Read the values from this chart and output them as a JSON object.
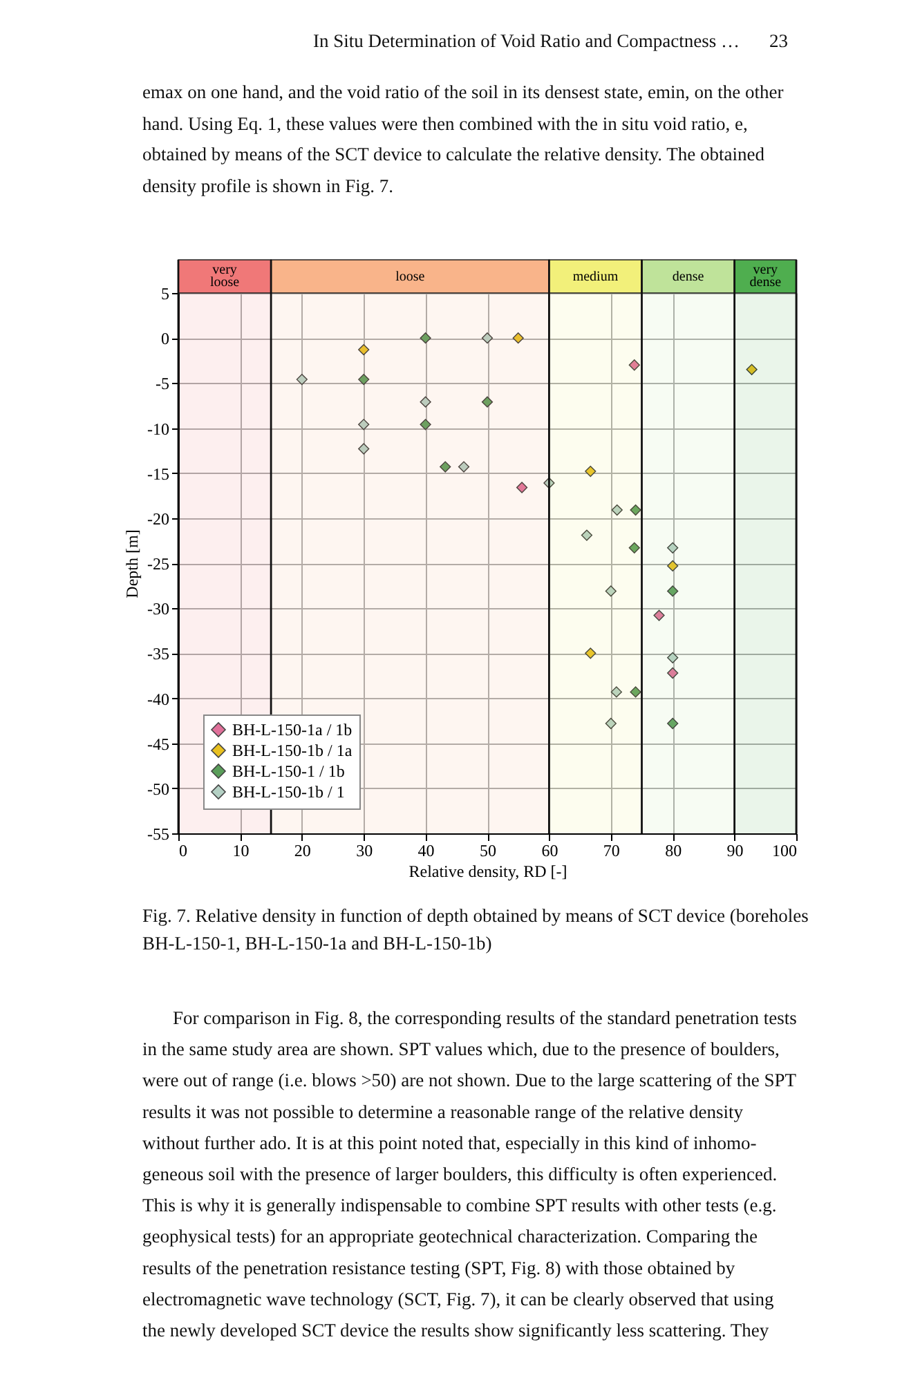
{
  "chart_data": {
    "type": "scatter",
    "xlabel": "Relative density, RD [-]",
    "ylabel": "Depth [m]",
    "xlim": [
      0,
      100
    ],
    "xticks": [
      0,
      10,
      20,
      30,
      40,
      50,
      60,
      70,
      80,
      90,
      100
    ],
    "ylim": [
      -55,
      5
    ],
    "yticks": [
      -55,
      -50,
      -45,
      -40,
      -35,
      -30,
      -25,
      -20,
      -15,
      -10,
      -5,
      0,
      5
    ],
    "grid": true,
    "legend": "bottom left",
    "marker": "diamond",
    "bands": [
      {
        "axis": "x",
        "from": 0,
        "to": 15,
        "label": "very loose",
        "color": "#f07878"
      },
      {
        "axis": "x",
        "from": 15,
        "to": 60,
        "label": "loose",
        "color": "#f9b48a"
      },
      {
        "axis": "x",
        "from": 60,
        "to": 75,
        "label": "medium",
        "color": "#f2f07a"
      },
      {
        "axis": "x",
        "from": 75,
        "to": 90,
        "label": "dense",
        "color": "#bfe39a"
      },
      {
        "axis": "x",
        "from": 90,
        "to": 100,
        "label": "very dense",
        "color": "#4fae4f"
      }
    ],
    "series": [
      {
        "name": "BH-L-150-1a / 1b",
        "color": "#e0709a",
        "x": [
          73.8,
          55.6,
          77.8,
          80
        ],
        "values": [
          -3.0,
          -16.6,
          -30.8,
          -37.2
        ]
      },
      {
        "name": "BH-L-150-1b / 1a",
        "color": "#e8c020",
        "x": [
          30,
          55,
          92.8,
          66.7,
          80,
          66.7
        ],
        "values": [
          -1.3,
          0,
          -3.5,
          -14.8,
          -25.3,
          -35.0
        ]
      },
      {
        "name": "BH-L-150-1 / 1b",
        "color": "#5a9e5a",
        "x": [
          30,
          40,
          50,
          40,
          43.2,
          74,
          73.8,
          80,
          74,
          80
        ],
        "values": [
          -4.6,
          0,
          -7.1,
          -9.6,
          -14.3,
          -19.1,
          -23.3,
          -28.1,
          -39.3,
          -42.8
        ]
      },
      {
        "name": "BH-L-150-1b / 1",
        "color": "#b4d0c4",
        "x": [
          20,
          50,
          40,
          30,
          30,
          46.2,
          60,
          71,
          66.1,
          80,
          70,
          80,
          70.9,
          70
        ],
        "values": [
          -4.6,
          0,
          -7.1,
          -9.6,
          -12.3,
          -14.3,
          -16.1,
          -19.1,
          -21.9,
          -23.3,
          -28.1,
          -35.5,
          -39.3,
          -42.8
        ]
      }
    ],
    "annotations": [
      "In Situ Determination of Void Ratio and Compactness …",
      "23",
      "emax on one hand, and the void ratio of the soil in its densest state, emin, on the other",
      "hand. Using Eq. 1, these values were then combined with the in situ void ratio, e,",
      "obtained by means of the SCT device to calculate the relative density. The obtained",
      "density profile is shown in Fig. 7.",
      "Fig. 7. Relative density in function of depth obtained by means of SCT device (boreholes",
      "BH-L-150-1, BH-L-150-1a and BH-L-150-1b)",
      "For comparison in Fig. 8, the corresponding results of the standard penetration tests",
      "in the same study area are shown. SPT values which, due to the presence of boulders,",
      "were out of range (i.e. blows >50) are not shown. Due to the large scattering of the SPT",
      "results it was not possible to determine a reasonable range of the relative density",
      "without further ado. It is at this point noted that, especially in this kind of inhomo-",
      "geneous soil with the presence of larger boulders, this difficulty is often experienced.",
      "This is why it is generally indispensable to combine SPT results with other tests (e.g.",
      "geophysical tests) for an appropriate geotechnical characterization. Comparing the",
      "results of the penetration resistance testing (SPT, Fig. 8) with those obtained by",
      "electromagnetic wave technology (SCT, Fig. 7), it can be clearly observed that using",
      "the newly developed SCT device the results show significantly less scattering. They"
    ]
  }
}
